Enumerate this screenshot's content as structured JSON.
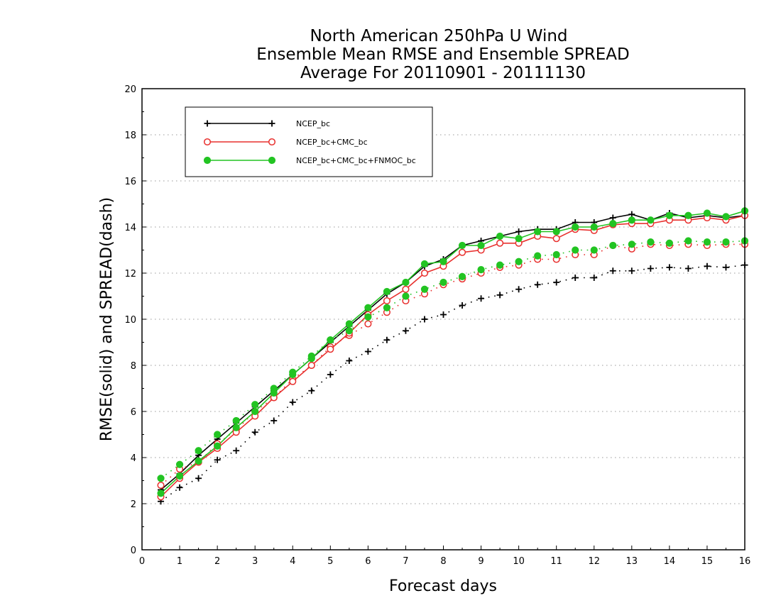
{
  "chart_data": {
    "type": "line",
    "title": [
      "North American 250hPa U Wind",
      "Ensemble Mean RMSE and Ensemble SPREAD",
      "Average For 20110901 - 20111130"
    ],
    "xlabel": "Forecast days",
    "ylabel": "RMSE(solid) and SPREAD(dash)",
    "xlim": [
      0,
      16
    ],
    "ylim": [
      0,
      20
    ],
    "xticks": [
      0,
      1,
      2,
      3,
      4,
      5,
      6,
      7,
      8,
      9,
      10,
      11,
      12,
      13,
      14,
      15,
      16
    ],
    "yticks": [
      0,
      2,
      4,
      6,
      8,
      10,
      12,
      14,
      16,
      18,
      20
    ],
    "grid": "horizontal dotted",
    "legend_position": "top-left",
    "x": [
      0.5,
      1,
      1.5,
      2,
      2.5,
      3,
      3.5,
      4,
      4.5,
      5,
      5.5,
      6,
      6.5,
      7,
      7.5,
      8,
      8.5,
      9,
      9.5,
      10,
      10.5,
      11,
      11.5,
      12,
      12.5,
      13,
      13.5,
      14,
      14.5,
      15,
      15.5,
      16
    ],
    "series": [
      {
        "name": "NCEP_bc",
        "color": "#000000",
        "marker": "plus",
        "rmse": [
          2.6,
          3.3,
          4.1,
          4.8,
          5.5,
          6.2,
          6.9,
          7.6,
          8.3,
          9.0,
          9.7,
          10.4,
          11.1,
          11.6,
          12.3,
          12.6,
          13.2,
          13.4,
          13.6,
          13.8,
          13.9,
          13.9,
          14.2,
          14.2,
          14.4,
          14.55,
          14.3,
          14.6,
          14.4,
          14.5,
          14.4,
          14.5
        ],
        "spread": [
          2.1,
          2.7,
          3.1,
          3.9,
          4.3,
          5.1,
          5.6,
          6.4,
          6.9,
          7.6,
          8.2,
          8.6,
          9.1,
          9.5,
          10.0,
          10.2,
          10.6,
          10.9,
          11.05,
          11.3,
          11.5,
          11.6,
          11.8,
          11.8,
          12.1,
          12.1,
          12.2,
          12.25,
          12.2,
          12.3,
          12.25,
          12.35
        ]
      },
      {
        "name": "NCEP_bc+CMC_bc",
        "color": "#e8302e",
        "marker": "open-circle",
        "rmse": [
          2.3,
          3.1,
          3.8,
          4.4,
          5.1,
          5.8,
          6.6,
          7.3,
          8.0,
          8.7,
          9.4,
          10.2,
          10.8,
          11.3,
          12.0,
          12.3,
          12.9,
          13.0,
          13.3,
          13.3,
          13.6,
          13.5,
          13.9,
          13.85,
          14.1,
          14.15,
          14.15,
          14.3,
          14.3,
          14.4,
          14.3,
          14.5
        ],
        "spread": [
          2.8,
          3.5,
          3.8,
          4.6,
          5.2,
          6.0,
          6.6,
          7.4,
          8.0,
          8.8,
          9.3,
          9.8,
          10.3,
          10.8,
          11.1,
          11.5,
          11.75,
          12.0,
          12.25,
          12.35,
          12.6,
          12.6,
          12.8,
          12.8,
          13.2,
          13.05,
          13.25,
          13.2,
          13.25,
          13.2,
          13.25,
          13.25
        ]
      },
      {
        "name": "NCEP_bc+CMC_bc+FNMOC_bc",
        "color": "#22c422",
        "marker": "filled-circle",
        "rmse": [
          2.45,
          3.2,
          3.85,
          4.5,
          5.3,
          6.0,
          6.8,
          7.6,
          8.3,
          9.1,
          9.8,
          10.5,
          11.2,
          11.6,
          12.4,
          12.5,
          13.2,
          13.2,
          13.6,
          13.5,
          13.8,
          13.8,
          14.0,
          14.0,
          14.15,
          14.3,
          14.3,
          14.5,
          14.5,
          14.6,
          14.45,
          14.7
        ],
        "spread": [
          3.1,
          3.7,
          4.3,
          5.0,
          5.6,
          6.3,
          7.0,
          7.7,
          8.4,
          9.1,
          9.5,
          10.1,
          10.5,
          11.0,
          11.3,
          11.6,
          11.85,
          12.15,
          12.35,
          12.5,
          12.75,
          12.8,
          13.0,
          13.0,
          13.2,
          13.25,
          13.35,
          13.3,
          13.4,
          13.35,
          13.35,
          13.4
        ]
      }
    ]
  }
}
